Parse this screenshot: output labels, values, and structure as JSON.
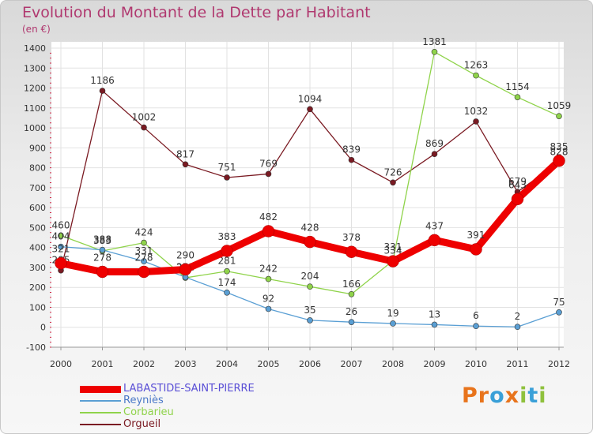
{
  "chart_data": {
    "type": "line",
    "title": "Evolution du Montant de la Dette par Habitant",
    "subtitle": "(en €)",
    "xlabel": "",
    "ylabel": "",
    "ylim": [
      -100,
      1400
    ],
    "yticks": [
      "-100",
      "0",
      "100",
      "200",
      "300",
      "400",
      "500",
      "600",
      "700",
      "800",
      "900",
      "1000",
      "1100",
      "1200",
      "1300",
      "1400"
    ],
    "categories": [
      "2000",
      "2001",
      "2002",
      "2003",
      "2004",
      "2005",
      "2006",
      "2007",
      "2008",
      "2009",
      "2010",
      "2011",
      "2012"
    ],
    "grid": true,
    "legend_position": "bottom-left",
    "series": [
      {
        "name": "LABASTIDE-SAINT-PIERRE",
        "color": "#ee0000",
        "values": [
          321,
          278,
          278,
          290,
          383,
          482,
          428,
          378,
          331,
          437,
          391,
          643,
          835
        ]
      },
      {
        "name": "Reyniès",
        "color": "#5a9fd4",
        "values": [
          404,
          388,
          331,
          251,
          174,
          92,
          35,
          26,
          19,
          13,
          6,
          2,
          75
        ]
      },
      {
        "name": "Corbarieu",
        "color": "#8fd34a",
        "values": [
          460,
          383,
          424,
          248,
          281,
          242,
          204,
          166,
          334,
          1381,
          1263,
          1154,
          1059
        ]
      },
      {
        "name": "Orgueil",
        "color": "#7a1a22",
        "values": [
          285,
          1186,
          1002,
          817,
          751,
          769,
          1094,
          839,
          726,
          869,
          1032,
          679,
          828
        ]
      }
    ]
  },
  "logo": {
    "text": "Proxiti",
    "letters": [
      {
        "ch": "P",
        "color": "#e8741c"
      },
      {
        "ch": "r",
        "color": "#e8741c"
      },
      {
        "ch": "o",
        "color": "#3aa0d8"
      },
      {
        "ch": "x",
        "color": "#e8741c"
      },
      {
        "ch": "i",
        "color": "#8fc13d"
      },
      {
        "ch": "t",
        "color": "#3aa0d8"
      },
      {
        "ch": "i",
        "color": "#8fc13d"
      }
    ]
  }
}
